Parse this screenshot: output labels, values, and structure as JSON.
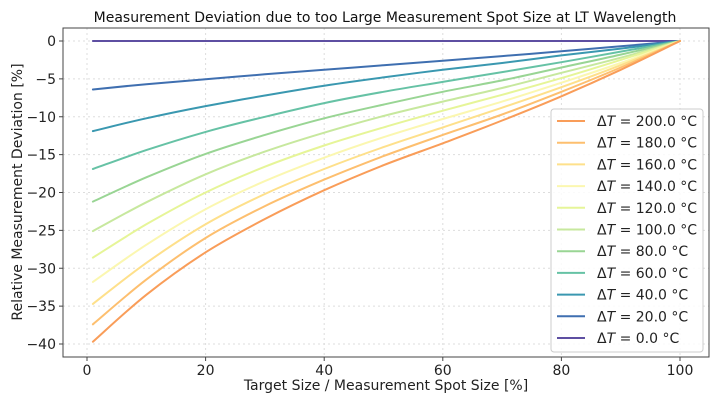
{
  "chart_data": {
    "type": "line",
    "title": "Measurement Deviation due to too Large Measurement Spot Size at LT Wavelength",
    "xlabel": "Target Size / Measurement Spot Size [%]",
    "ylabel": "Relative Measurement Deviation [%]",
    "xlim": [
      -4,
      105
    ],
    "ylim": [
      -42,
      2
    ],
    "xticks": [
      0,
      20,
      40,
      60,
      80,
      100
    ],
    "xtick_labels": [
      "0",
      "20",
      "40",
      "60",
      "80",
      "100"
    ],
    "yticks": [
      0,
      -5,
      -10,
      -15,
      -20,
      -25,
      -30,
      -35,
      -40
    ],
    "ytick_labels": [
      "0",
      "−5",
      "−10",
      "−15",
      "−20",
      "−25",
      "−30",
      "−35",
      "−40"
    ],
    "grid": true,
    "legend_position": "lower-right",
    "x": [
      1,
      10,
      20,
      30,
      40,
      50,
      60,
      70,
      80,
      90,
      100
    ],
    "series": [
      {
        "name": "ΔT = 200.0 °C",
        "label_prefix": "Δ",
        "label_var": "T",
        "label_value": "= 200.0 °C",
        "color": "#f99d59",
        "values": [
          -39.7,
          -33.5,
          -27.9,
          -23.5,
          -19.7,
          -16.4,
          -13.5,
          -10.5,
          -7.3,
          -3.8,
          0.0
        ]
      },
      {
        "name": "ΔT = 180.0 °C",
        "label_prefix": "Δ",
        "label_var": "T",
        "label_value": "= 180.0 °C",
        "color": "#fdbf6f",
        "values": [
          -37.4,
          -31.5,
          -26.0,
          -21.8,
          -18.3,
          -15.2,
          -12.4,
          -9.7,
          -6.7,
          -3.5,
          0.0
        ]
      },
      {
        "name": "ΔT = 160.0 °C",
        "label_prefix": "Δ",
        "label_var": "T",
        "label_value": "= 160.0 °C",
        "color": "#fee08b",
        "values": [
          -34.7,
          -29.3,
          -24.2,
          -20.2,
          -16.9,
          -14.0,
          -11.4,
          -8.8,
          -6.1,
          -3.2,
          0.0
        ]
      },
      {
        "name": "ΔT = 140.0 °C",
        "label_prefix": "Δ",
        "label_var": "T",
        "label_value": "= 140.0 °C",
        "color": "#fbf7b0",
        "values": [
          -31.8,
          -26.9,
          -22.2,
          -18.5,
          -15.4,
          -12.7,
          -10.3,
          -8.0,
          -5.5,
          -2.9,
          0.0
        ]
      },
      {
        "name": "ΔT = 120.0 °C",
        "label_prefix": "Δ",
        "label_var": "T",
        "label_value": "= 120.0 °C",
        "color": "#e6f598",
        "values": [
          -28.6,
          -24.2,
          -20.0,
          -16.6,
          -13.8,
          -11.4,
          -9.2,
          -7.1,
          -4.9,
          -2.5,
          0.0
        ]
      },
      {
        "name": "ΔT = 100.0 °C",
        "label_prefix": "Δ",
        "label_var": "T",
        "label_value": "= 100.0 °C",
        "color": "#c7e89e",
        "values": [
          -25.1,
          -21.3,
          -17.6,
          -14.6,
          -12.1,
          -9.9,
          -8.0,
          -6.2,
          -4.2,
          -2.2,
          0.0
        ]
      },
      {
        "name": "ΔT = 80.0 °C",
        "label_prefix": "Δ",
        "label_var": "T",
        "label_value": "= 80.0 °C",
        "color": "#99d594",
        "values": [
          -21.2,
          -18.0,
          -14.9,
          -12.4,
          -10.2,
          -8.4,
          -6.7,
          -5.2,
          -3.5,
          -1.8,
          0.0
        ]
      },
      {
        "name": "ΔT = 60.0 °C",
        "label_prefix": "Δ",
        "label_var": "T",
        "label_value": "= 60.0 °C",
        "color": "#66c2a5",
        "values": [
          -16.9,
          -14.4,
          -12.0,
          -10.0,
          -8.2,
          -6.7,
          -5.4,
          -4.1,
          -2.8,
          -1.4,
          0.0
        ]
      },
      {
        "name": "ΔT = 40.0 °C",
        "label_prefix": "Δ",
        "label_var": "T",
        "label_value": "= 40.0 °C",
        "color": "#3a98b0",
        "values": [
          -11.9,
          -10.2,
          -8.6,
          -7.2,
          -5.9,
          -4.8,
          -3.8,
          -2.9,
          -1.9,
          -1.0,
          0.0
        ]
      },
      {
        "name": "ΔT = 20.0 °C",
        "label_prefix": "Δ",
        "label_var": "T",
        "label_value": "= 20.0 °C",
        "color": "#3f6fb0",
        "values": [
          -6.4,
          -5.7,
          -5.05,
          -4.4,
          -3.8,
          -3.2,
          -2.6,
          -2.0,
          -1.35,
          -0.7,
          0.0
        ]
      },
      {
        "name": "ΔT = 0.0 °C",
        "label_prefix": "Δ",
        "label_var": "T",
        "label_value": "= 0.0 °C",
        "color": "#5e4fa2",
        "values": [
          0,
          0,
          0,
          0,
          0,
          0,
          0,
          0,
          0,
          0,
          0
        ]
      }
    ]
  }
}
